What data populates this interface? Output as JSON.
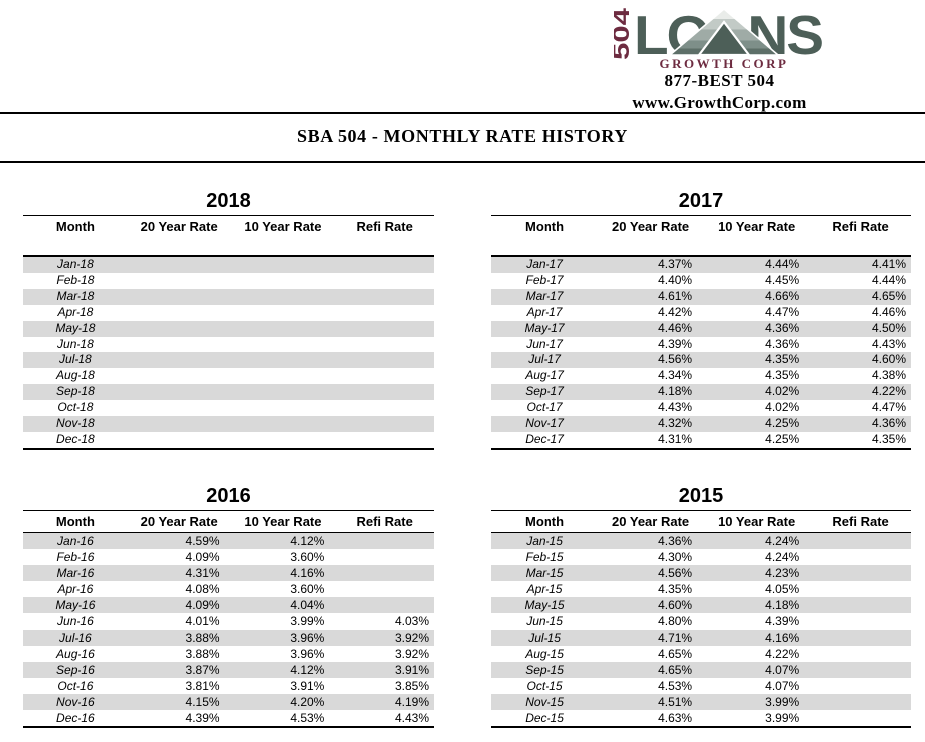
{
  "logo": {
    "vertical_text": "504",
    "brand": "LOANS",
    "subtitle": "GROWTH CORP",
    "phone": "877-BEST 504",
    "website": "www.GrowthCorp.com"
  },
  "colors": {
    "maroon": "#6d2b40",
    "slate_green": "#4d5f58",
    "row_stripe": "#d9d9d9"
  },
  "title": "SBA 504 - MONTHLY RATE HISTORY",
  "columns": [
    "Month",
    "20 Year Rate",
    "10 Year Rate",
    "Refi Rate"
  ],
  "tables": [
    {
      "year": "2018",
      "rows": [
        [
          "Jan-18",
          "",
          "",
          ""
        ],
        [
          "Feb-18",
          "",
          "",
          ""
        ],
        [
          "Mar-18",
          "",
          "",
          ""
        ],
        [
          "Apr-18",
          "",
          "",
          ""
        ],
        [
          "May-18",
          "",
          "",
          ""
        ],
        [
          "Jun-18",
          "",
          "",
          ""
        ],
        [
          "Jul-18",
          "",
          "",
          ""
        ],
        [
          "Aug-18",
          "",
          "",
          ""
        ],
        [
          "Sep-18",
          "",
          "",
          ""
        ],
        [
          "Oct-18",
          "",
          "",
          ""
        ],
        [
          "Nov-18",
          "",
          "",
          ""
        ],
        [
          "Dec-18",
          "",
          "",
          ""
        ]
      ]
    },
    {
      "year": "2017",
      "rows": [
        [
          "Jan-17",
          "4.37%",
          "4.44%",
          "4.41%"
        ],
        [
          "Feb-17",
          "4.40%",
          "4.45%",
          "4.44%"
        ],
        [
          "Mar-17",
          "4.61%",
          "4.66%",
          "4.65%"
        ],
        [
          "Apr-17",
          "4.42%",
          "4.47%",
          "4.46%"
        ],
        [
          "May-17",
          "4.46%",
          "4.36%",
          "4.50%"
        ],
        [
          "Jun-17",
          "4.39%",
          "4.36%",
          "4.43%"
        ],
        [
          "Jul-17",
          "4.56%",
          "4.35%",
          "4.60%"
        ],
        [
          "Aug-17",
          "4.34%",
          "4.35%",
          "4.38%"
        ],
        [
          "Sep-17",
          "4.18%",
          "4.02%",
          "4.22%"
        ],
        [
          "Oct-17",
          "4.43%",
          "4.02%",
          "4.47%"
        ],
        [
          "Nov-17",
          "4.32%",
          "4.25%",
          "4.36%"
        ],
        [
          "Dec-17",
          "4.31%",
          "4.25%",
          "4.35%"
        ]
      ]
    },
    {
      "year": "2016",
      "rows": [
        [
          "Jan-16",
          "4.59%",
          "4.12%",
          ""
        ],
        [
          "Feb-16",
          "4.09%",
          "3.60%",
          ""
        ],
        [
          "Mar-16",
          "4.31%",
          "4.16%",
          ""
        ],
        [
          "Apr-16",
          "4.08%",
          "3.60%",
          ""
        ],
        [
          "May-16",
          "4.09%",
          "4.04%",
          ""
        ],
        [
          "Jun-16",
          "4.01%",
          "3.99%",
          "4.03%"
        ],
        [
          "Jul-16",
          "3.88%",
          "3.96%",
          "3.92%"
        ],
        [
          "Aug-16",
          "3.88%",
          "3.96%",
          "3.92%"
        ],
        [
          "Sep-16",
          "3.87%",
          "4.12%",
          "3.91%"
        ],
        [
          "Oct-16",
          "3.81%",
          "3.91%",
          "3.85%"
        ],
        [
          "Nov-16",
          "4.15%",
          "4.20%",
          "4.19%"
        ],
        [
          "Dec-16",
          "4.39%",
          "4.53%",
          "4.43%"
        ]
      ]
    },
    {
      "year": "2015",
      "rows": [
        [
          "Jan-15",
          "4.36%",
          "4.24%",
          ""
        ],
        [
          "Feb-15",
          "4.30%",
          "4.24%",
          ""
        ],
        [
          "Mar-15",
          "4.56%",
          "4.23%",
          ""
        ],
        [
          "Apr-15",
          "4.35%",
          "4.05%",
          ""
        ],
        [
          "May-15",
          "4.60%",
          "4.18%",
          ""
        ],
        [
          "Jun-15",
          "4.80%",
          "4.39%",
          ""
        ],
        [
          "Jul-15",
          "4.71%",
          "4.16%",
          ""
        ],
        [
          "Aug-15",
          "4.65%",
          "4.22%",
          ""
        ],
        [
          "Sep-15",
          "4.65%",
          "4.07%",
          ""
        ],
        [
          "Oct-15",
          "4.53%",
          "4.07%",
          ""
        ],
        [
          "Nov-15",
          "4.51%",
          "3.99%",
          ""
        ],
        [
          "Dec-15",
          "4.63%",
          "3.99%",
          ""
        ]
      ]
    }
  ]
}
